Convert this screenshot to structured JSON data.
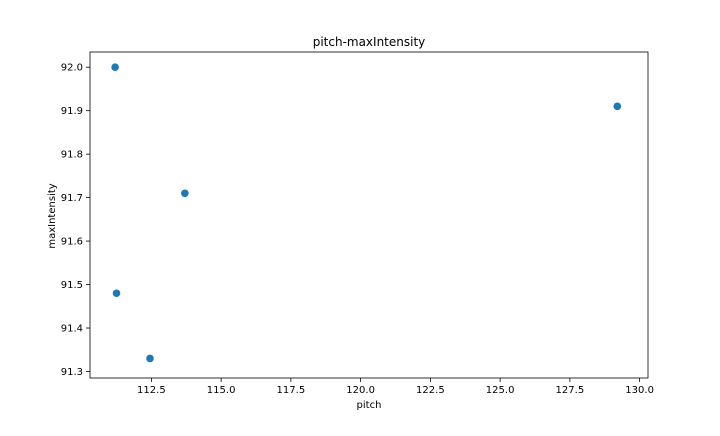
{
  "chart_data": {
    "type": "scatter",
    "title": "pitch-maxIntensity",
    "xlabel": "pitch",
    "ylabel": "maxIntensity",
    "xlim": [
      110.3,
      130.3
    ],
    "ylim": [
      91.285,
      92.035
    ],
    "xticks": [
      112.5,
      115.0,
      117.5,
      120.0,
      122.5,
      125.0,
      127.5,
      130.0
    ],
    "xtick_labels": [
      "112.5",
      "115.0",
      "117.5",
      "120.0",
      "122.5",
      "125.0",
      "127.5",
      "130.0"
    ],
    "yticks": [
      91.3,
      91.4,
      91.5,
      91.6,
      91.7,
      91.8,
      91.9,
      92.0
    ],
    "ytick_labels": [
      "91.3",
      "91.4",
      "91.5",
      "91.6",
      "91.7",
      "91.8",
      "91.9",
      "92.0"
    ],
    "grid": false,
    "points": [
      {
        "x": 111.2,
        "y": 92.0
      },
      {
        "x": 111.25,
        "y": 91.48
      },
      {
        "x": 112.45,
        "y": 91.33
      },
      {
        "x": 113.7,
        "y": 91.71
      },
      {
        "x": 129.2,
        "y": 91.91
      }
    ],
    "marker_color": "#1f77b4"
  }
}
